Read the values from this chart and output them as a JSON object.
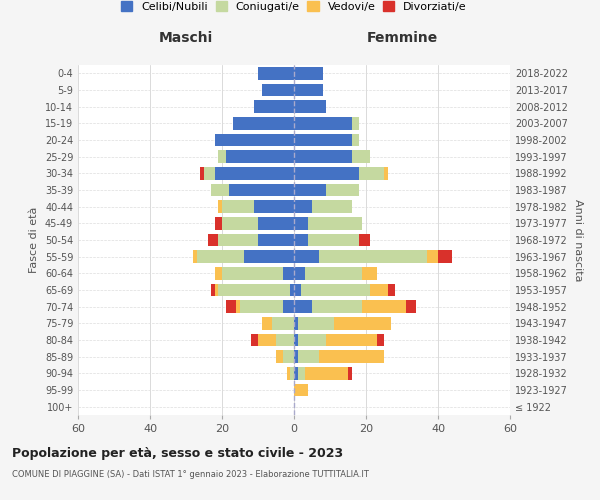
{
  "age_groups": [
    "100+",
    "95-99",
    "90-94",
    "85-89",
    "80-84",
    "75-79",
    "70-74",
    "65-69",
    "60-64",
    "55-59",
    "50-54",
    "45-49",
    "40-44",
    "35-39",
    "30-34",
    "25-29",
    "20-24",
    "15-19",
    "10-14",
    "5-9",
    "0-4"
  ],
  "birth_years": [
    "≤ 1922",
    "1923-1927",
    "1928-1932",
    "1933-1937",
    "1938-1942",
    "1943-1947",
    "1948-1952",
    "1953-1957",
    "1958-1962",
    "1963-1967",
    "1968-1972",
    "1973-1977",
    "1978-1982",
    "1983-1987",
    "1988-1992",
    "1993-1997",
    "1998-2002",
    "2003-2007",
    "2008-2012",
    "2013-2017",
    "2018-2022"
  ],
  "maschi": {
    "celibi": [
      0,
      0,
      0,
      0,
      0,
      0,
      3,
      1,
      3,
      14,
      10,
      10,
      11,
      18,
      22,
      19,
      22,
      17,
      11,
      9,
      10
    ],
    "coniugati": [
      0,
      0,
      1,
      3,
      5,
      6,
      12,
      20,
      17,
      13,
      11,
      10,
      9,
      5,
      3,
      2,
      0,
      0,
      0,
      0,
      0
    ],
    "vedovi": [
      0,
      0,
      1,
      2,
      5,
      3,
      1,
      1,
      2,
      1,
      0,
      0,
      1,
      0,
      0,
      0,
      0,
      0,
      0,
      0,
      0
    ],
    "divorziati": [
      0,
      0,
      0,
      0,
      2,
      0,
      3,
      1,
      0,
      0,
      3,
      2,
      0,
      0,
      1,
      0,
      0,
      0,
      0,
      0,
      0
    ]
  },
  "femmine": {
    "nubili": [
      0,
      0,
      1,
      1,
      1,
      1,
      5,
      2,
      3,
      7,
      4,
      4,
      5,
      9,
      18,
      16,
      16,
      16,
      9,
      8,
      8
    ],
    "coniugate": [
      0,
      0,
      2,
      6,
      8,
      10,
      14,
      19,
      16,
      30,
      14,
      15,
      11,
      9,
      7,
      5,
      2,
      2,
      0,
      0,
      0
    ],
    "vedove": [
      0,
      4,
      12,
      18,
      14,
      16,
      12,
      5,
      4,
      3,
      0,
      0,
      0,
      0,
      1,
      0,
      0,
      0,
      0,
      0,
      0
    ],
    "divorziate": [
      0,
      0,
      1,
      0,
      2,
      0,
      3,
      2,
      0,
      4,
      3,
      0,
      0,
      0,
      0,
      0,
      0,
      0,
      0,
      0,
      0
    ]
  },
  "colors": {
    "celibi_nubili": "#4472C4",
    "coniugati": "#C5D9A0",
    "vedovi": "#FAC050",
    "divorziati": "#D9312B"
  },
  "xlim": 60,
  "title": "Popolazione per età, sesso e stato civile - 2023",
  "subtitle": "COMUNE DI PIAGGINE (SA) - Dati ISTAT 1° gennaio 2023 - Elaborazione TUTTITALIA.IT",
  "ylabel_left": "Fasce di età",
  "ylabel_right": "Anni di nascita",
  "xlabel_left": "Maschi",
  "xlabel_right": "Femmine",
  "bg_color": "#f5f5f5",
  "plot_bg_color": "#ffffff"
}
